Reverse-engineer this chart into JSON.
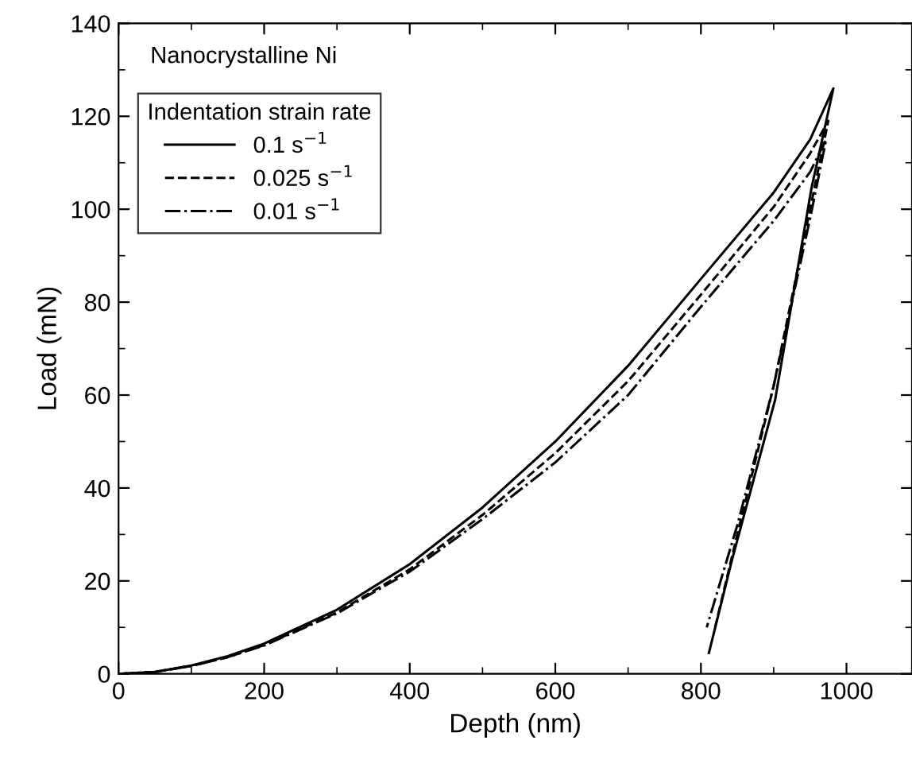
{
  "chart_data": {
    "type": "line",
    "xlabel": "Depth (nm)",
    "ylabel": "Load (mN)",
    "legend_title": "Indentation strain rate",
    "legend": "top left",
    "annotations": [
      "Nanocrystalline Ni"
    ],
    "xlim": [
      0,
      1090
    ],
    "ylim": [
      0,
      140
    ],
    "xticks": [
      0,
      200,
      400,
      600,
      800,
      1000
    ],
    "yticks": [
      0,
      20,
      40,
      60,
      80,
      100,
      120,
      140
    ],
    "grid": false,
    "marker": "none",
    "series": [
      {
        "name": "0.1 s$^{−1}$",
        "color": "#000000",
        "line_style": "solid",
        "x": [
          0,
          50,
          100,
          150,
          200,
          300,
          400,
          500,
          600,
          700,
          800,
          900,
          950,
          982,
          952,
          902,
          843,
          811
        ],
        "values": [
          0,
          0.4,
          1.8,
          3.8,
          6.5,
          13.8,
          23.6,
          35.8,
          50,
          66.3,
          85,
          103.6,
          115,
          126,
          104.6,
          59,
          24.7,
          4.5
        ]
      },
      {
        "name": "0.025 s$^{−1}$",
        "color": "#000000",
        "line_style": "dashed",
        "x": [
          0,
          50,
          100,
          150,
          200,
          300,
          400,
          500,
          600,
          700,
          800,
          900,
          950,
          975,
          950,
          900,
          850,
          818
        ],
        "values": [
          0,
          0.4,
          1.7,
          3.6,
          6.2,
          13.2,
          22.5,
          34.2,
          47.5,
          63,
          81.6,
          100.5,
          112,
          119,
          100,
          62,
          30,
          9
        ]
      },
      {
        "name": "0.01 s$^{−1}$",
        "color": "#000000",
        "line_style": "dashdot",
        "x": [
          0,
          50,
          100,
          150,
          200,
          300,
          400,
          500,
          600,
          700,
          800,
          900,
          950,
          972,
          950,
          900,
          850,
          808
        ],
        "values": [
          0,
          0.4,
          1.7,
          3.6,
          6.1,
          13,
          22,
          33.3,
          45.5,
          60,
          79,
          97.5,
          108,
          115,
          98,
          62,
          32,
          10
        ]
      }
    ]
  }
}
